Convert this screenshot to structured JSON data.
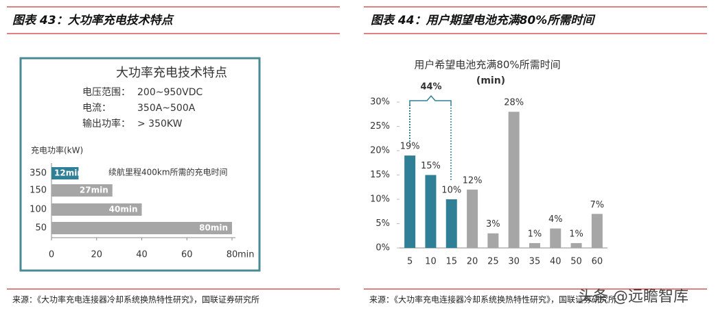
{
  "chart_data": [
    {
      "type": "barh",
      "header": "图表 43：大功率充电技术特点",
      "title": "大功率充电技术特点",
      "specs": [
        [
          "电压范围：",
          "200~950VDC"
        ],
        [
          "电流：",
          "350A~500A"
        ],
        [
          "输出功率：",
          "> 350KW"
        ]
      ],
      "ylabel": "充电功率(kW)",
      "annotation": "续航里程400km所需的充电时间",
      "categories": [
        "350",
        "150",
        "100",
        "50"
      ],
      "values": [
        12,
        27,
        40,
        80
      ],
      "value_labels": [
        "12min",
        "27min",
        "40min",
        "80min"
      ],
      "colors": [
        "#2f7f96",
        "#a6a6a6",
        "#a6a6a6",
        "#a6a6a6"
      ],
      "xlim": [
        0,
        80
      ],
      "xticks": [
        0,
        20,
        40,
        60,
        80
      ],
      "x_unit": "min",
      "source": "来源：《大功率充电连接器冷却系统换热特性研究》，国联证券研究所"
    },
    {
      "type": "bar",
      "header": "图表 44：用户期望电池充满80%所需时间",
      "title": "用户希望电池充满80%所需时间",
      "subtitle": "(min)",
      "annotation": "44%",
      "categories": [
        "5",
        "10",
        "15",
        "20",
        "25",
        "30",
        "35",
        "40",
        "50",
        "60"
      ],
      "values": [
        19,
        15,
        10,
        12,
        3,
        28,
        1,
        4,
        1,
        7
      ],
      "value_labels": [
        "19%",
        "15%",
        "10%",
        "12%",
        "3%",
        "28%",
        "1%",
        "4%",
        "1%",
        "7%"
      ],
      "colors": [
        "#2f7f96",
        "#2f7f96",
        "#2f7f96",
        "#a6a6a6",
        "#a6a6a6",
        "#a6a6a6",
        "#a6a6a6",
        "#a6a6a6",
        "#a6a6a6",
        "#a6a6a6"
      ],
      "ylim": [
        0,
        30
      ],
      "yticks": [
        {
          "value": 0,
          "label": "0%"
        },
        {
          "value": 5,
          "label": "5%"
        },
        {
          "value": 10,
          "label": "10%"
        },
        {
          "value": 15,
          "label": "15%"
        },
        {
          "value": 20,
          "label": "20%"
        },
        {
          "value": 25,
          "label": "25%"
        },
        {
          "value": 30,
          "label": "30%"
        }
      ],
      "source": "来源：《大功率充电连接器冷却系统换热特性研究》，国联证券研究所"
    }
  ],
  "watermark": "头条 @远瞻智库"
}
